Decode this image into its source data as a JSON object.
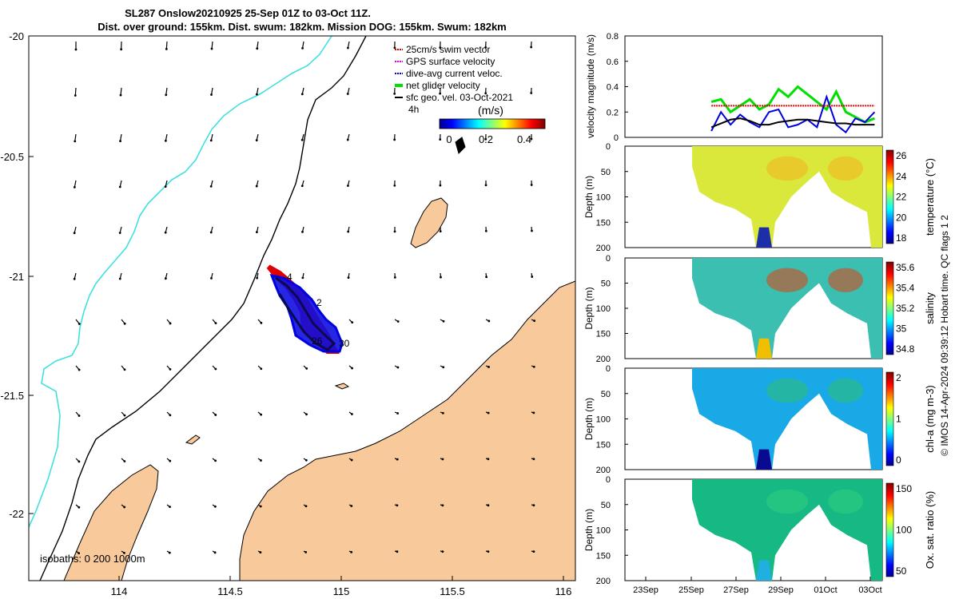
{
  "title_line1": "SL287 Onslow20210925 25-Sep 01Z to 03-Oct 11Z.",
  "title_line2": "Dist. over ground: 155km. Dist. swum: 182km. Mission DOG: 155km. Swum: 182km",
  "credit": "© IMOS 14-Apr-2024 09:39:12 Hobart time. QC flags 1  2",
  "map": {
    "lon_ticks": [
      "114",
      "114.5",
      "115",
      "115.5",
      "116"
    ],
    "lat_ticks": [
      "-20",
      "-20.5",
      "-21",
      "-21.5",
      "-22"
    ],
    "isobaths_label": "isobaths: 0   200  1000m",
    "legend": [
      {
        "label": "25cm/s swim vector",
        "color": "#e00000"
      },
      {
        "label": "GPS surface velocity",
        "color": "#e000e0"
      },
      {
        "label": "dive-avg current veloc.",
        "color": "#0000e0"
      },
      {
        "label": "net glider velocity",
        "color": "#00e000"
      },
      {
        "label": "sfc geo. vel. 03-Oct-2021",
        "color": "#000000"
      }
    ],
    "colorbar_unit": "(m/s)",
    "colorbar_ticks": [
      "0",
      "0.2",
      "0.4"
    ],
    "colorbar_side_label": "4h",
    "track_labels": [
      "4",
      "2",
      "26",
      "30"
    ],
    "land_color": "#f8c99a",
    "isobath_200_color": "#40e0e0"
  },
  "chart_data": {
    "type": "line",
    "title": "",
    "xlabel": "",
    "ylabel": "velocity magnitude (m/s)",
    "ylim": [
      0,
      0.8
    ],
    "y_ticks": [
      "0",
      "0.2",
      "0.4",
      "0.6",
      "0.8"
    ],
    "x": [
      25.0,
      25.5,
      26.0,
      26.5,
      27.0,
      27.5,
      28.0,
      28.5,
      29.0,
      29.5,
      30.0,
      30.5,
      31.0,
      31.5,
      32.0,
      32.5,
      33.0,
      33.5
    ],
    "series": [
      {
        "name": "",
        "color": "#00e000",
        "values": [
          0.28,
          0.3,
          0.2,
          0.25,
          0.3,
          0.22,
          0.26,
          0.38,
          0.32,
          0.4,
          0.34,
          0.28,
          0.22,
          0.36,
          0.2,
          0.16,
          0.12,
          0.15
        ]
      },
      {
        "name": "",
        "color": "#0000e0",
        "values": [
          0.05,
          0.2,
          0.1,
          0.18,
          0.12,
          0.08,
          0.2,
          0.22,
          0.08,
          0.1,
          0.14,
          0.08,
          0.32,
          0.1,
          0.04,
          0.15,
          0.12,
          0.2
        ]
      },
      {
        "name": "",
        "color": "#e00000",
        "values": [
          0.25,
          0.25,
          0.25,
          0.25,
          0.25,
          0.25,
          0.25,
          0.25,
          0.25,
          0.25,
          0.25,
          0.25,
          0.25,
          0.25,
          0.25,
          0.25,
          0.25,
          0.25
        ]
      },
      {
        "name": "",
        "color": "#000000",
        "values": [
          0.08,
          0.11,
          0.14,
          0.15,
          0.13,
          0.1,
          0.1,
          0.12,
          0.13,
          0.14,
          0.14,
          0.13,
          0.12,
          0.11,
          0.11,
          0.1,
          0.1,
          0.1
        ]
      }
    ]
  },
  "sections": [
    {
      "label": "temperature (°C)",
      "cbar_ticks": [
        "26",
        "24",
        "22",
        "20",
        "18"
      ],
      "depth_ticks": [
        "0",
        "50",
        "100",
        "150",
        "200"
      ],
      "ylabel": "Depth (m)"
    },
    {
      "label": "salinity",
      "cbar_ticks": [
        "35.6",
        "35.4",
        "35.2",
        "35",
        "34.8"
      ],
      "depth_ticks": [
        "0",
        "50",
        "100",
        "150",
        "200"
      ],
      "ylabel": "Depth (m)"
    },
    {
      "label": "chl-a (mg m-3)",
      "cbar_ticks": [
        "2",
        "1",
        "0"
      ],
      "depth_ticks": [
        "0",
        "50",
        "100",
        "150",
        "200"
      ],
      "ylabel": "Depth (m)"
    },
    {
      "label": "Ox. sat. ratio (%)",
      "cbar_ticks": [
        "150",
        "100",
        "50"
      ],
      "depth_ticks": [
        "0",
        "50",
        "100",
        "150",
        "200"
      ],
      "ylabel": "Depth (m)"
    }
  ],
  "time_ticks": [
    "23Sep",
    "25Sep",
    "27Sep",
    "29Sep",
    "01Oct",
    "03Oct"
  ]
}
